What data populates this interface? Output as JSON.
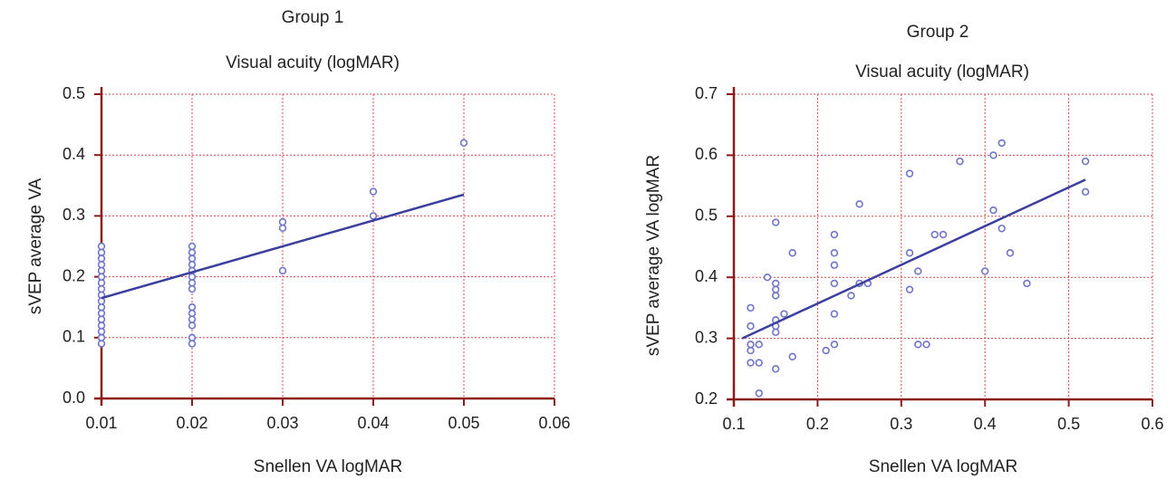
{
  "chart_data": [
    {
      "type": "scatter",
      "title": "Group 1",
      "subtitle": "Visual acuity (logMAR)",
      "x_label": "Snellen VA logMAR",
      "y_label": "sVEP average VA",
      "x": [
        0.01,
        0.01,
        0.01,
        0.01,
        0.01,
        0.01,
        0.01,
        0.01,
        0.01,
        0.01,
        0.01,
        0.01,
        0.01,
        0.01,
        0.01,
        0.01,
        0.01,
        0.02,
        0.02,
        0.02,
        0.02,
        0.02,
        0.02,
        0.02,
        0.02,
        0.02,
        0.02,
        0.02,
        0.02,
        0.02,
        0.02,
        0.03,
        0.03,
        0.03,
        0.04,
        0.04,
        0.05
      ],
      "values": [
        0.09,
        0.1,
        0.11,
        0.12,
        0.13,
        0.14,
        0.15,
        0.16,
        0.17,
        0.18,
        0.19,
        0.2,
        0.21,
        0.22,
        0.23,
        0.24,
        0.25,
        0.09,
        0.1,
        0.12,
        0.13,
        0.14,
        0.15,
        0.18,
        0.19,
        0.2,
        0.21,
        0.22,
        0.23,
        0.24,
        0.25,
        0.21,
        0.28,
        0.29,
        0.3,
        0.34,
        0.42
      ],
      "color": "#6f74c8",
      "fit": {
        "x": [
          0.01,
          0.05
        ],
        "values": [
          0.165,
          0.335
        ],
        "color": "#3b3f9e"
      },
      "xlim": [
        0.01,
        0.06
      ],
      "ylim": [
        0,
        0.5
      ],
      "xticks": [
        0.01,
        0.02,
        0.03,
        0.04,
        0.05,
        0.06
      ],
      "yticks": [
        {
          "value": 0,
          "label": "0.0"
        },
        0.1,
        0.2,
        0.3,
        0.4,
        0.5
      ],
      "grid": true
    },
    {
      "type": "scatter",
      "title": "Group 2",
      "subtitle": "Visual acuity (logMAR)",
      "x_label": "Snellen VA logMAR",
      "y_label": "sVEP average VA logMAR",
      "x": [
        0.12,
        0.12,
        0.12,
        0.12,
        0.12,
        0.13,
        0.13,
        0.13,
        0.14,
        0.15,
        0.15,
        0.15,
        0.15,
        0.15,
        0.15,
        0.15,
        0.15,
        0.16,
        0.17,
        0.17,
        0.21,
        0.22,
        0.22,
        0.22,
        0.22,
        0.22,
        0.22,
        0.24,
        0.25,
        0.25,
        0.26,
        0.31,
        0.31,
        0.31,
        0.32,
        0.32,
        0.33,
        0.34,
        0.35,
        0.37,
        0.4,
        0.41,
        0.41,
        0.42,
        0.42,
        0.43,
        0.45,
        0.52,
        0.52
      ],
      "values": [
        0.35,
        0.32,
        0.29,
        0.28,
        0.26,
        0.29,
        0.26,
        0.21,
        0.4,
        0.49,
        0.39,
        0.38,
        0.37,
        0.33,
        0.32,
        0.31,
        0.25,
        0.34,
        0.44,
        0.27,
        0.28,
        0.47,
        0.44,
        0.42,
        0.39,
        0.34,
        0.29,
        0.37,
        0.52,
        0.39,
        0.39,
        0.57,
        0.44,
        0.38,
        0.41,
        0.29,
        0.29,
        0.47,
        0.47,
        0.59,
        0.41,
        0.6,
        0.51,
        0.62,
        0.48,
        0.44,
        0.39,
        0.59,
        0.54
      ],
      "color": "#6f74c8",
      "fit": {
        "x": [
          0.11,
          0.52
        ],
        "values": [
          0.3,
          0.56
        ],
        "color": "#3b3f9e"
      },
      "xlim": [
        0.1,
        0.6
      ],
      "ylim": [
        0.2,
        0.7
      ],
      "xticks": [
        0.1,
        0.2,
        0.3,
        0.4,
        0.5,
        0.6
      ],
      "yticks": [
        0.2,
        0.3,
        0.4,
        0.5,
        0.6,
        0.7
      ],
      "grid": true
    }
  ]
}
